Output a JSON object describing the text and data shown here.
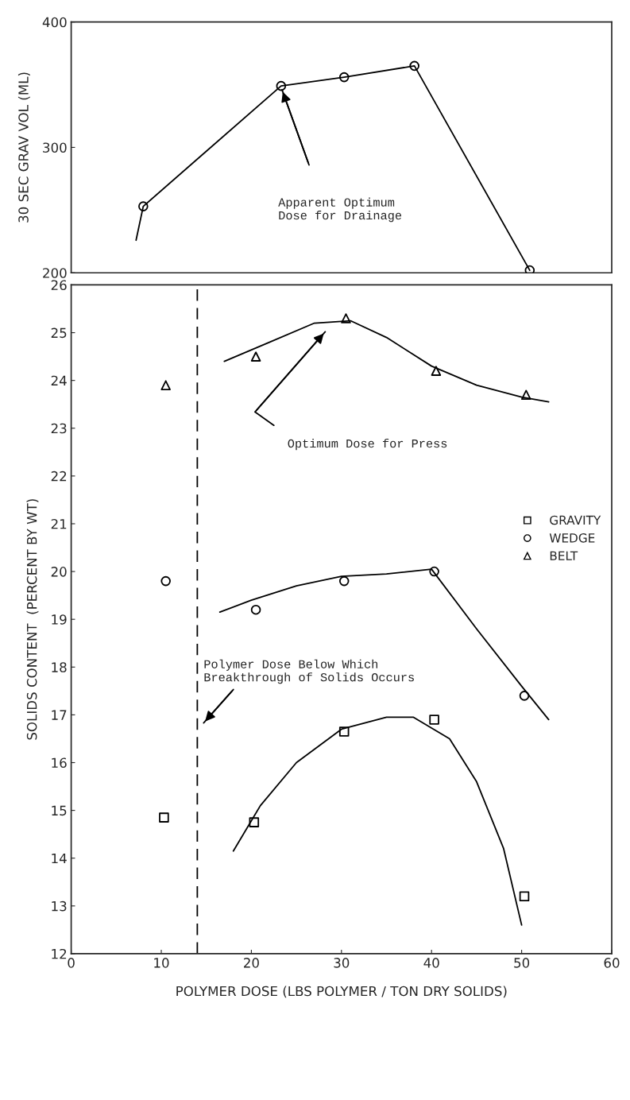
{
  "chart_data": [
    {
      "type": "line",
      "ylabel": "30 SEC GRAV VOL (ML)",
      "xlim": [
        0,
        60
      ],
      "ylim": [
        200,
        400
      ],
      "yticks": [
        200,
        300,
        400
      ],
      "tick_labels": "y",
      "grid": false,
      "legend": false,
      "series": [
        {
          "color": "#000000",
          "marker": "none",
          "x": [
            7.2,
            8.0,
            23.3,
            30.3,
            38.1,
            50.9
          ],
          "values": [
            226,
            253,
            349,
            356,
            365,
            202
          ]
        },
        {
          "type": "scatter",
          "color": "#000000",
          "marker": "circle",
          "x": [
            8.0,
            23.3,
            30.3,
            38.1,
            50.9
          ],
          "values": [
            253,
            349,
            356,
            365,
            202
          ]
        }
      ],
      "annotations": [
        "Apparent Optimum\nDose for Drainage"
      ]
    },
    {
      "type": "line",
      "xlabel": "POLYMER DOSE (LBS POLYMER / TON DRY SOLIDS)",
      "ylabel": "SOLIDS CONTENT  (PERCENT BY WT)",
      "xlim": [
        0,
        60
      ],
      "xticks": [
        0,
        10,
        20,
        30,
        40,
        50,
        60
      ],
      "ylim": [
        12,
        26
      ],
      "yticks": [
        12,
        13,
        14,
        15,
        16,
        17,
        18,
        19,
        20,
        21,
        22,
        23,
        24,
        25,
        26
      ],
      "grid": false,
      "legend": "right",
      "series": [
        {
          "type": "scatter",
          "name": "GRAVITY",
          "color": "#000000",
          "marker": "square",
          "x": [
            10.3,
            20.3,
            30.3,
            40.3,
            50.3
          ],
          "values": [
            14.85,
            14.75,
            16.65,
            16.9,
            13.2
          ]
        },
        {
          "type": "scatter",
          "name": "WEDGE",
          "color": "#000000",
          "marker": "circle",
          "x": [
            10.5,
            20.5,
            30.3,
            40.3,
            50.3
          ],
          "values": [
            19.8,
            19.2,
            19.8,
            20.0,
            17.4
          ]
        },
        {
          "type": "scatter",
          "name": "BELT",
          "color": "#000000",
          "marker": "triangle",
          "x": [
            10.5,
            20.5,
            30.5,
            40.5,
            50.5
          ],
          "values": [
            23.9,
            24.5,
            25.3,
            24.2,
            23.7
          ]
        },
        {
          "color": "#000000",
          "marker": "none",
          "x": [
            17,
            22,
            27,
            31,
            35,
            40,
            45,
            50,
            53
          ],
          "values": [
            24.4,
            24.8,
            25.2,
            25.25,
            24.9,
            24.3,
            23.9,
            23.65,
            23.55
          ]
        },
        {
          "color": "#000000",
          "marker": "none",
          "x": [
            16.5,
            20,
            25,
            30,
            35,
            40,
            45,
            50,
            53
          ],
          "values": [
            19.15,
            19.4,
            19.7,
            19.9,
            19.95,
            20.05,
            18.8,
            17.6,
            16.9
          ]
        },
        {
          "color": "#000000",
          "marker": "none",
          "x": [
            18,
            21,
            25,
            30,
            35,
            38,
            42,
            45,
            48,
            50
          ],
          "values": [
            14.15,
            15.1,
            16.0,
            16.7,
            16.95,
            16.95,
            16.5,
            15.6,
            14.2,
            12.6
          ]
        }
      ],
      "ref_lines": [
        {
          "axis": "x",
          "value": 14,
          "color": "#000000",
          "line_style": "dashed"
        }
      ],
      "annotations": [
        "Optimum Dose for Press",
        "Polymer Dose Below Which\nBreakthrough of Solids Occurs"
      ]
    }
  ]
}
